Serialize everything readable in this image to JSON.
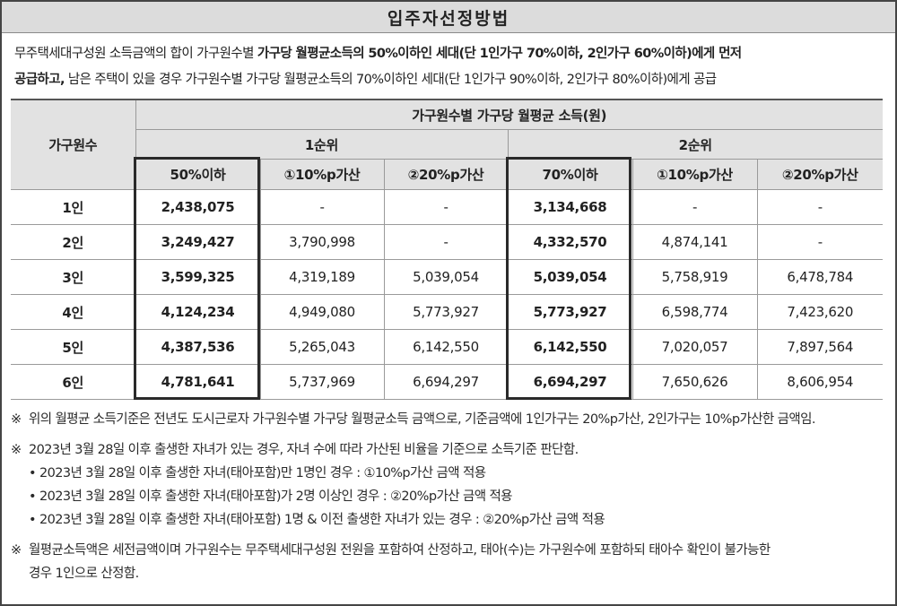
{
  "title": "입주자선정방법",
  "intro": {
    "line1_regular": "무주택세대구성원 소득금액의 합이 가구원수별 ",
    "line1_bold": "가구당 월평균소득의 50%이하인 세대(단 1인가구 70%이하, 2인가구 60%이하)에게 먼저",
    "line2_bold": "공급하고,",
    "line2_regular": " 남은 주택이 있을 경우 가구원수별 가구당 월평균소득의 70%이하인 세대(단 1인가구 90%이하, 2인가구 80%이하)에게 공급"
  },
  "table": {
    "household_header": "가구원수",
    "income_header": "가구원수별 가구당 월평균 소득(원)",
    "rank1": "1순위",
    "rank2": "2순위",
    "columns": [
      "50%이하",
      "①10%p가산",
      "②20%p가산",
      "70%이하",
      "①10%p가산",
      "②20%p가산"
    ],
    "rows": [
      {
        "household": "1인",
        "values": [
          "2,438,075",
          "-",
          "-",
          "3,134,668",
          "-",
          "-"
        ]
      },
      {
        "household": "2인",
        "values": [
          "3,249,427",
          "3,790,998",
          "-",
          "4,332,570",
          "4,874,141",
          "-"
        ]
      },
      {
        "household": "3인",
        "values": [
          "3,599,325",
          "4,319,189",
          "5,039,054",
          "5,039,054",
          "5,758,919",
          "6,478,784"
        ]
      },
      {
        "household": "4인",
        "values": [
          "4,124,234",
          "4,949,080",
          "5,773,927",
          "5,773,927",
          "6,598,774",
          "7,423,620"
        ]
      },
      {
        "household": "5인",
        "values": [
          "4,387,536",
          "5,265,043",
          "6,142,550",
          "6,142,550",
          "7,020,057",
          "7,897,564"
        ]
      },
      {
        "household": "6인",
        "values": [
          "4,781,641",
          "5,737,969",
          "6,694,297",
          "6,694,297",
          "7,650,626",
          "8,606,954"
        ]
      }
    ]
  },
  "notes": {
    "mark": "※",
    "bullet": "•",
    "n1": "위의 월평균 소득기준은 전년도 도시근로자 가구원수별 가구당 월평균소득 금액으로, 기준금액에 1인가구는 20%p가산, 2인가구는 10%p가산한 금액임.",
    "n2": "2023년 3월 28일 이후 출생한 자녀가 있는 경우, 자녀 수에 따라 가산된 비율을 기준으로 소득기준 판단함.",
    "n2_sub": [
      "2023년 3월 28일 이후 출생한 자녀(태아포함)만 1명인 경우 : ①10%p가산 금액 적용",
      "2023년 3월 28일 이후 출생한 자녀(태아포함)가 2명 이상인 경우 : ②20%p가산 금액 적용",
      "2023년 3월 28일 이후 출생한 자녀(태아포함) 1명 & 이전 출생한 자녀가 있는 경우 : ②20%p가산 금액 적용"
    ],
    "n3_line1": "월평균소득액은 세전금액이며 가구원수는 무주택세대구성원 전원을 포함하여 산정하고, 태아(수)는 가구원수에 포함하되 태아수 확인이 불가능한",
    "n3_line2": "경우 1인으로 산정함."
  }
}
